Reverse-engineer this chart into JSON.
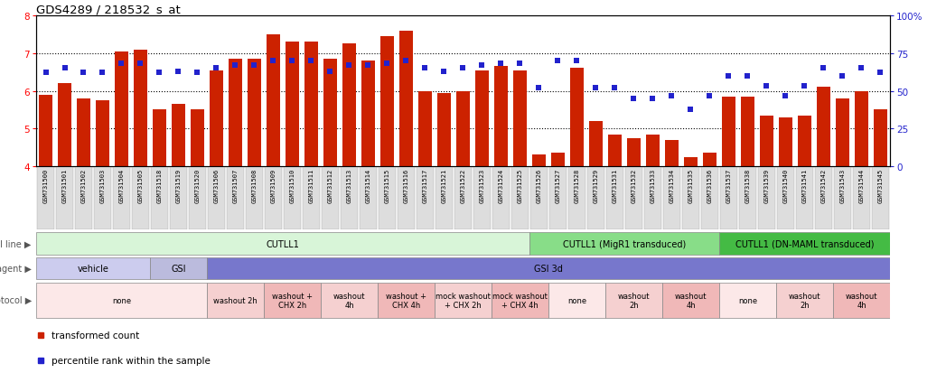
{
  "title": "GDS4289 / 218532_s_at",
  "samples": [
    "GSM731500",
    "GSM731501",
    "GSM731502",
    "GSM731503",
    "GSM731504",
    "GSM731505",
    "GSM731518",
    "GSM731519",
    "GSM731520",
    "GSM731506",
    "GSM731507",
    "GSM731508",
    "GSM731509",
    "GSM731510",
    "GSM731511",
    "GSM731512",
    "GSM731513",
    "GSM731514",
    "GSM731515",
    "GSM731516",
    "GSM731517",
    "GSM731521",
    "GSM731522",
    "GSM731523",
    "GSM731524",
    "GSM731525",
    "GSM731526",
    "GSM731527",
    "GSM731528",
    "GSM731529",
    "GSM731531",
    "GSM731532",
    "GSM731533",
    "GSM731534",
    "GSM731535",
    "GSM731536",
    "GSM731537",
    "GSM731538",
    "GSM731539",
    "GSM731540",
    "GSM731541",
    "GSM731542",
    "GSM731543",
    "GSM731544",
    "GSM731545"
  ],
  "bar_values": [
    5.9,
    6.2,
    5.8,
    5.75,
    7.05,
    7.1,
    5.5,
    5.65,
    5.5,
    6.55,
    6.85,
    6.85,
    7.5,
    7.3,
    7.3,
    6.85,
    7.25,
    6.8,
    7.45,
    7.6,
    6.0,
    5.95,
    6.0,
    6.55,
    6.65,
    6.55,
    4.3,
    4.35,
    6.6,
    5.2,
    4.85,
    4.75,
    4.85,
    4.7,
    4.25,
    4.35,
    5.85,
    5.85,
    5.35,
    5.3,
    5.35,
    6.1,
    5.8,
    6.0,
    5.5
  ],
  "dot_values": [
    62,
    65,
    62,
    62,
    68,
    68,
    62,
    63,
    62,
    65,
    67,
    67,
    70,
    70,
    70,
    63,
    67,
    67,
    68,
    70,
    65,
    63,
    65,
    67,
    68,
    68,
    52,
    70,
    70,
    52,
    52,
    45,
    45,
    47,
    38,
    47,
    60,
    60,
    53,
    47,
    53,
    65,
    60,
    65,
    62
  ],
  "ylim_left": [
    4,
    8
  ],
  "ylim_right": [
    0,
    100
  ],
  "yticks_left": [
    4,
    5,
    6,
    7,
    8
  ],
  "yticks_right": [
    0,
    25,
    50,
    75,
    100
  ],
  "bar_color": "#cc2200",
  "dot_color": "#2222cc",
  "cell_line_groups": [
    {
      "label": "CUTLL1",
      "start": 0,
      "end": 26,
      "color": "#d8f5d8"
    },
    {
      "label": "CUTLL1 (MigR1 transduced)",
      "start": 26,
      "end": 36,
      "color": "#88dd88"
    },
    {
      "label": "CUTLL1 (DN-MAML transduced)",
      "start": 36,
      "end": 45,
      "color": "#44bb44"
    }
  ],
  "agent_groups": [
    {
      "label": "vehicle",
      "start": 0,
      "end": 6,
      "color": "#ccccee"
    },
    {
      "label": "GSI",
      "start": 6,
      "end": 9,
      "color": "#bbbbdd"
    },
    {
      "label": "GSI 3d",
      "start": 9,
      "end": 45,
      "color": "#7777cc"
    }
  ],
  "protocol_groups": [
    {
      "label": "none",
      "start": 0,
      "end": 9,
      "color": "#fce8e8"
    },
    {
      "label": "washout 2h",
      "start": 9,
      "end": 12,
      "color": "#f5d0d0"
    },
    {
      "label": "washout +\nCHX 2h",
      "start": 12,
      "end": 15,
      "color": "#f0b8b8"
    },
    {
      "label": "washout\n4h",
      "start": 15,
      "end": 18,
      "color": "#f5d0d0"
    },
    {
      "label": "washout +\nCHX 4h",
      "start": 18,
      "end": 21,
      "color": "#f0b8b8"
    },
    {
      "label": "mock washout\n+ CHX 2h",
      "start": 21,
      "end": 24,
      "color": "#f5d0d0"
    },
    {
      "label": "mock washout\n+ CHX 4h",
      "start": 24,
      "end": 27,
      "color": "#f0b8b8"
    },
    {
      "label": "none",
      "start": 27,
      "end": 30,
      "color": "#fce8e8"
    },
    {
      "label": "washout\n2h",
      "start": 30,
      "end": 33,
      "color": "#f5d0d0"
    },
    {
      "label": "washout\n4h",
      "start": 33,
      "end": 36,
      "color": "#f0b8b8"
    },
    {
      "label": "none",
      "start": 36,
      "end": 39,
      "color": "#fce8e8"
    },
    {
      "label": "washout\n2h",
      "start": 39,
      "end": 42,
      "color": "#f5d0d0"
    },
    {
      "label": "washout\n4h",
      "start": 42,
      "end": 45,
      "color": "#f0b8b8"
    }
  ],
  "row_labels": [
    "cell line",
    "agent",
    "protocol"
  ],
  "legend_items": [
    {
      "label": "transformed count",
      "color": "#cc2200"
    },
    {
      "label": "percentile rank within the sample",
      "color": "#2222cc"
    }
  ]
}
